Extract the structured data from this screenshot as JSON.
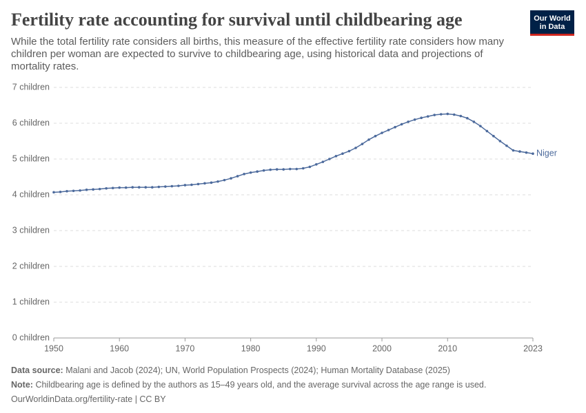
{
  "chart_data": {
    "type": "line",
    "title": "Fertility rate accounting for survival until childbearing age",
    "subtitle": "While the total fertility rate considers all births, this measure of the effective fertility rate considers how many children per woman are expected to survive to childbearing age, using historical data and projections of mortality rates.",
    "logo": [
      "Our World",
      "in Data"
    ],
    "x": [
      1950,
      1951,
      1952,
      1953,
      1954,
      1955,
      1956,
      1957,
      1958,
      1959,
      1960,
      1961,
      1962,
      1963,
      1964,
      1965,
      1966,
      1967,
      1968,
      1969,
      1970,
      1971,
      1972,
      1973,
      1974,
      1975,
      1976,
      1977,
      1978,
      1979,
      1980,
      1981,
      1982,
      1983,
      1984,
      1985,
      1986,
      1987,
      1988,
      1989,
      1990,
      1991,
      1992,
      1993,
      1994,
      1995,
      1996,
      1997,
      1998,
      1999,
      2000,
      2001,
      2002,
      2003,
      2004,
      2005,
      2006,
      2007,
      2008,
      2009,
      2010,
      2011,
      2012,
      2013,
      2014,
      2015,
      2016,
      2017,
      2018,
      2019,
      2020,
      2021,
      2022,
      2023
    ],
    "series": [
      {
        "name": "Niger",
        "color": "#4c6a9c",
        "values": [
          4.07,
          4.08,
          4.1,
          4.11,
          4.12,
          4.14,
          4.15,
          4.16,
          4.18,
          4.19,
          4.2,
          4.2,
          4.21,
          4.21,
          4.21,
          4.21,
          4.22,
          4.23,
          4.24,
          4.25,
          4.27,
          4.28,
          4.3,
          4.32,
          4.34,
          4.37,
          4.41,
          4.46,
          4.52,
          4.58,
          4.62,
          4.65,
          4.68,
          4.7,
          4.71,
          4.71,
          4.72,
          4.72,
          4.74,
          4.78,
          4.85,
          4.92,
          5.0,
          5.08,
          5.15,
          5.22,
          5.31,
          5.42,
          5.54,
          5.64,
          5.73,
          5.81,
          5.89,
          5.97,
          6.04,
          6.1,
          6.15,
          6.19,
          6.23,
          6.25,
          6.26,
          6.24,
          6.2,
          6.14,
          6.04,
          5.92,
          5.78,
          5.64,
          5.5,
          5.37,
          5.24,
          5.21,
          5.18,
          5.15
        ]
      }
    ],
    "xlim": [
      1950,
      2023
    ],
    "xticks": [
      1950,
      1960,
      1970,
      1980,
      1990,
      2000,
      2010,
      2023
    ],
    "ylim": [
      0,
      7
    ],
    "yticks": [
      {
        "value": 0,
        "label": "0 children"
      },
      {
        "value": 1,
        "label": "1 children"
      },
      {
        "value": 2,
        "label": "2 children"
      },
      {
        "value": 3,
        "label": "3 children"
      },
      {
        "value": 4,
        "label": "4 children"
      },
      {
        "value": 5,
        "label": "5 children"
      },
      {
        "value": 6,
        "label": "6 children"
      },
      {
        "value": 7,
        "label": "7 children"
      }
    ],
    "grid": true,
    "source_label": "Data source:",
    "source": "Malani and Jacob (2024); UN, World Population Prospects (2024); Human Mortality Database (2025)",
    "note_label": "Note:",
    "note": "Childbearing age is defined by the authors as 15–49 years old, and the average survival across the age range is used.",
    "url": "OurWorldinData.org/fertility-rate | CC BY"
  }
}
